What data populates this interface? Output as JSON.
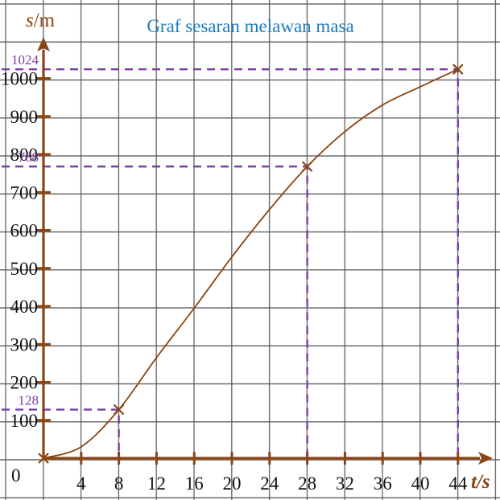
{
  "chart_data": {
    "type": "line",
    "title": "Graf sesaran melawan masa",
    "xlabel_var": "t",
    "xlabel_unit": "/s",
    "ylabel_var": "s",
    "ylabel_unit": "/m",
    "origin_label": "0",
    "x_ticks": [
      4,
      8,
      12,
      16,
      20,
      24,
      28,
      32,
      36,
      40,
      44
    ],
    "y_ticks": [
      100,
      200,
      300,
      400,
      500,
      600,
      700,
      800,
      900,
      1000
    ],
    "xlim": [
      0,
      46
    ],
    "ylim": [
      0,
      1080
    ],
    "grid": true,
    "series": [
      {
        "x": [
          0,
          4,
          8,
          12,
          16,
          20,
          24,
          28,
          32,
          36,
          40,
          44
        ],
        "y": [
          0,
          30,
          128,
          265,
          395,
          530,
          655,
          768,
          860,
          930,
          978,
          1024
        ]
      }
    ],
    "marked_points": [
      {
        "x": 0,
        "y": 0
      },
      {
        "x": 8,
        "y": 128
      },
      {
        "x": 28,
        "y": 768
      },
      {
        "x": 44,
        "y": 1024
      }
    ],
    "annotations": [
      "128",
      "768",
      "1024"
    ]
  },
  "colors": {
    "axis": "#8b4513",
    "curve": "#8b4513",
    "guide": "#7b3fa0",
    "title": "#1b7cc0",
    "grid": "#555555"
  }
}
